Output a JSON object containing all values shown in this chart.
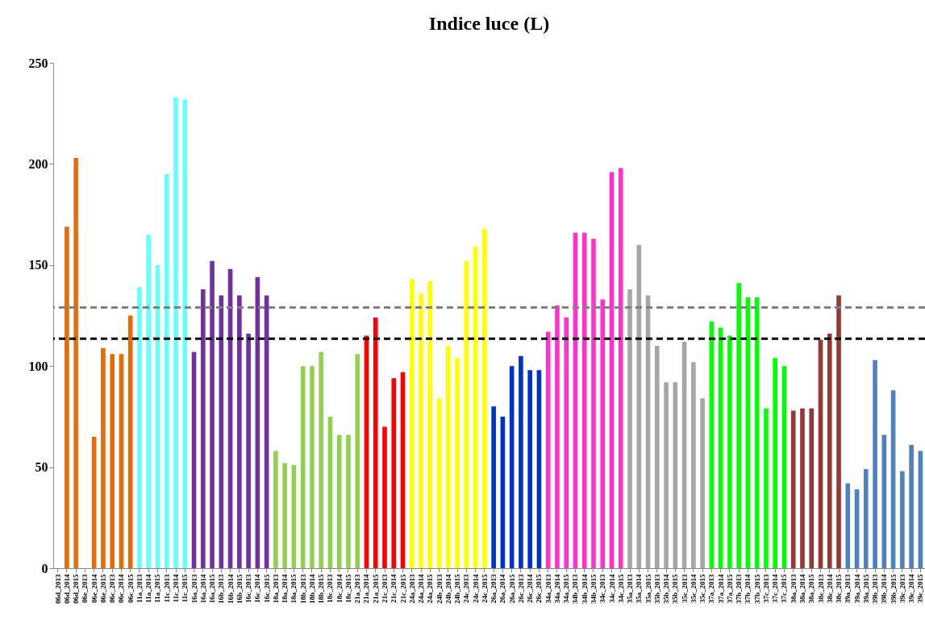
{
  "chart_data": {
    "type": "bar",
    "title": "Indice luce (L)",
    "categories": [
      "06d_2013",
      "06d_2014",
      "06d_2015",
      "06e_2013",
      "06e_2014",
      "06e_2015",
      "06c_2013",
      "06c_2014",
      "06c_2015",
      "11a_2013",
      "11a_2014",
      "11a_2015",
      "11c_2013",
      "11c_2014",
      "11c_2015",
      "16a_2013",
      "16a_2014",
      "16a_2015",
      "16b_2013",
      "16b_2014",
      "16b_2015",
      "16c_2013",
      "16c_2014",
      "16c_2015",
      "18a_2013",
      "18a_2014",
      "18a_2015",
      "18b_2013",
      "18b_2014",
      "18b_2015",
      "18c_2013",
      "18c_2014",
      "18c_2015",
      "21a_2013",
      "21a_2014",
      "21a_2015",
      "21c_2013",
      "21c_2014",
      "21c_2015",
      "24a_2013",
      "24a_2014",
      "24a_2015",
      "24b_2013",
      "24b_2014",
      "24b_2015",
      "24c_2013",
      "24c_2014",
      "24c_2015",
      "26a_2013",
      "26a_2014",
      "26a_2015",
      "26c_2013",
      "26c_2014",
      "26c_2015",
      "34a_2013",
      "34a_2014",
      "34a_2015",
      "34b_2013",
      "34b_2014",
      "34b_2015",
      "34c_2013",
      "34c_2014",
      "34c_2015",
      "35a_2013",
      "35a_2014",
      "35a_2015",
      "35b_2013",
      "35b_2014",
      "35b_2015",
      "35c_2013",
      "35c_2014",
      "35c_2015",
      "37a_2013",
      "37a_2014",
      "37a_2015",
      "37b_2013",
      "37b_2014",
      "37b_2015",
      "37c_2013",
      "37c_2014",
      "37c_2015",
      "38a_2013",
      "38a_2014",
      "38a_2015",
      "38c_2013",
      "38c_2014",
      "38c_2015",
      "39a_2013",
      "39a_2014",
      "39a_2015",
      "39b_2013",
      "39b_2014",
      "39b_2015",
      "39c_2013",
      "39c_2014",
      "39c_2015"
    ],
    "values": [
      null,
      169,
      203,
      null,
      65,
      109,
      106,
      106,
      125,
      139,
      165,
      150,
      195,
      233,
      232,
      107,
      138,
      152,
      135,
      148,
      135,
      116,
      144,
      135,
      58,
      52,
      51,
      100,
      100,
      107,
      75,
      66,
      66,
      106,
      115,
      124,
      70,
      94,
      97,
      143,
      136,
      142,
      84,
      110,
      104,
      152,
      159,
      168,
      80,
      75,
      100,
      105,
      98,
      98,
      117,
      130,
      124,
      166,
      166,
      163,
      133,
      196,
      198,
      138,
      160,
      135,
      110,
      92,
      92,
      112,
      102,
      84,
      122,
      119,
      115,
      141,
      134,
      134,
      79,
      104,
      100,
      78,
      79,
      79,
      113,
      116,
      135,
      42,
      39,
      49,
      103,
      66,
      88,
      48,
      61,
      58
    ],
    "colors": [
      "#e46c0a",
      "#e46c0a",
      "#e46c0a",
      "#e46c0a",
      "#e46c0a",
      "#e46c0a",
      "#e46c0a",
      "#e46c0a",
      "#e46c0a",
      "#66ffff",
      "#66ffff",
      "#66ffff",
      "#66ffff",
      "#66ffff",
      "#66ffff",
      "#7030a0",
      "#7030a0",
      "#7030a0",
      "#7030a0",
      "#7030a0",
      "#7030a0",
      "#7030a0",
      "#7030a0",
      "#7030a0",
      "#92d050",
      "#92d050",
      "#92d050",
      "#92d050",
      "#92d050",
      "#92d050",
      "#92d050",
      "#92d050",
      "#92d050",
      "#92d050",
      "#ff0000",
      "#ff0000",
      "#ff0000",
      "#ff0000",
      "#ff0000",
      "#ffff00",
      "#ffff00",
      "#ffff00",
      "#ffff00",
      "#ffff00",
      "#ffff00",
      "#ffff00",
      "#ffff00",
      "#ffff00",
      "#0033cc",
      "#0033cc",
      "#0033cc",
      "#0033cc",
      "#0033cc",
      "#0033cc",
      "#ff33cc",
      "#ff33cc",
      "#ff33cc",
      "#ff33cc",
      "#ff33cc",
      "#ff33cc",
      "#ff33cc",
      "#ff33cc",
      "#ff33cc",
      "#a6a6a6",
      "#a6a6a6",
      "#a6a6a6",
      "#a6a6a6",
      "#a6a6a6",
      "#a6a6a6",
      "#a6a6a6",
      "#a6a6a6",
      "#a6a6a6",
      "#00ff00",
      "#00ff00",
      "#00ff00",
      "#00ff00",
      "#00ff00",
      "#00ff00",
      "#00ff00",
      "#00ff00",
      "#00ff00",
      "#953735",
      "#953735",
      "#953735",
      "#953735",
      "#953735",
      "#953735",
      "#4f81bd",
      "#4f81bd",
      "#4f81bd",
      "#4f81bd",
      "#4f81bd",
      "#4f81bd",
      "#4f81bd",
      "#4f81bd",
      "#4f81bd"
    ],
    "ylim": [
      0,
      250
    ],
    "yticks": [
      0,
      50,
      100,
      150,
      200,
      250
    ],
    "grid": false,
    "ref_lines": [
      {
        "axis": "y",
        "value": 129,
        "color": "#808080",
        "line_style": "dashed"
      },
      {
        "axis": "y",
        "value": 113.5,
        "color": "#000000",
        "line_style": "dashed"
      }
    ]
  }
}
